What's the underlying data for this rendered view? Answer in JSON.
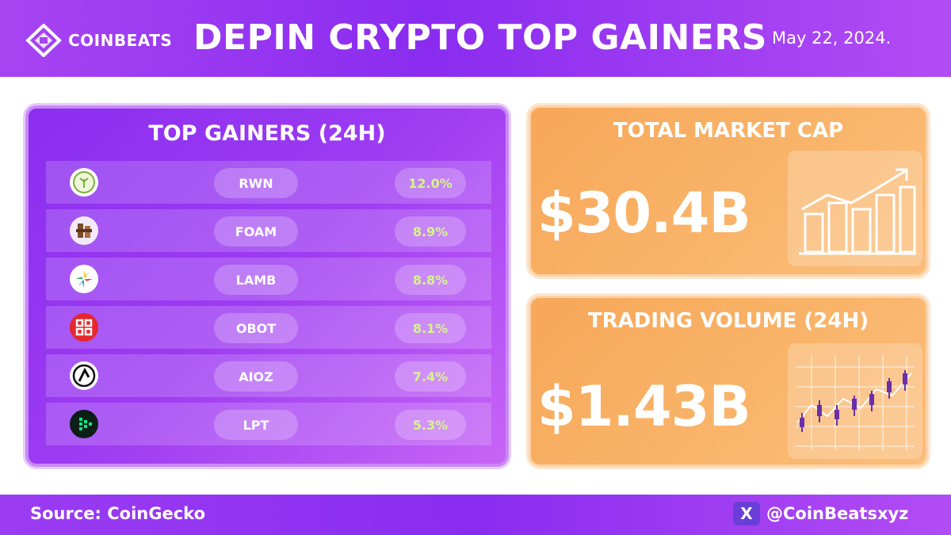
{
  "header": {
    "brand": "COINBEATS",
    "title": "DEPIN CRYPTO TOP GAINERS",
    "date": "May 22, 2024."
  },
  "gainers": {
    "title": "TOP GAINERS (24H)",
    "rows": [
      {
        "symbol": "RWN",
        "change": "12.0%",
        "icon": "rwn-coin-icon"
      },
      {
        "symbol": "FOAM",
        "change": "8.9%",
        "icon": "foam-coin-icon"
      },
      {
        "symbol": "LAMB",
        "change": "8.8%",
        "icon": "lamb-coin-icon"
      },
      {
        "symbol": "OBOT",
        "change": "8.1%",
        "icon": "obot-coin-icon"
      },
      {
        "symbol": "AIOZ",
        "change": "7.4%",
        "icon": "aioz-coin-icon"
      },
      {
        "symbol": "LPT",
        "change": "5.3%",
        "icon": "lpt-coin-icon"
      }
    ]
  },
  "market_cap": {
    "title": "TOTAL MARKET CAP",
    "value": "$30.4B",
    "icon": "bar-chart-trend-icon"
  },
  "volume": {
    "title": "TRADING VOLUME (24H)",
    "value": "$1.43B",
    "icon": "candlestick-chart-icon"
  },
  "footer": {
    "source": "Source: CoinGecko",
    "handle": "@CoinBeatsxyz",
    "x_label": "X"
  },
  "colors": {
    "purple": "#8a2cf0",
    "orange": "#f7a758",
    "green_text": "#d6f58a"
  }
}
